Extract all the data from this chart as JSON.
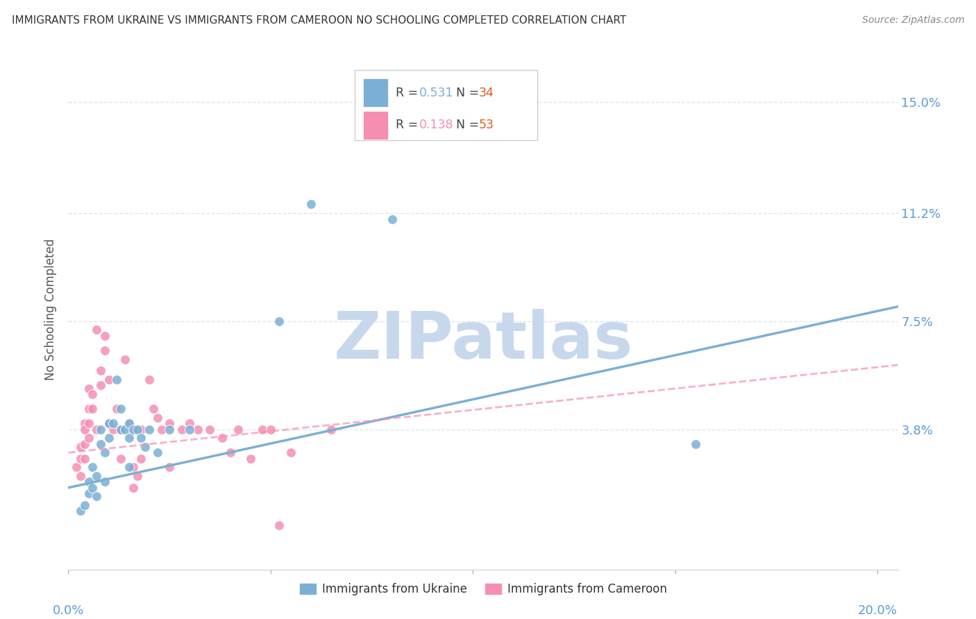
{
  "title": "IMMIGRANTS FROM UKRAINE VS IMMIGRANTS FROM CAMEROON NO SCHOOLING COMPLETED CORRELATION CHART",
  "source": "Source: ZipAtlas.com",
  "ylabel": "No Schooling Completed",
  "ytick_labels": [
    "15.0%",
    "11.2%",
    "7.5%",
    "3.8%"
  ],
  "ytick_values": [
    0.15,
    0.112,
    0.075,
    0.038
  ],
  "xlim": [
    0.0,
    0.205
  ],
  "ylim": [
    -0.01,
    0.168
  ],
  "ukraine_color": "#7bafd4",
  "cameroon_color": "#f48fb1",
  "ukraine_scatter": [
    [
      0.003,
      0.01
    ],
    [
      0.004,
      0.012
    ],
    [
      0.005,
      0.02
    ],
    [
      0.005,
      0.016
    ],
    [
      0.006,
      0.025
    ],
    [
      0.006,
      0.018
    ],
    [
      0.007,
      0.022
    ],
    [
      0.007,
      0.015
    ],
    [
      0.008,
      0.038
    ],
    [
      0.008,
      0.033
    ],
    [
      0.009,
      0.03
    ],
    [
      0.009,
      0.02
    ],
    [
      0.01,
      0.04
    ],
    [
      0.01,
      0.035
    ],
    [
      0.011,
      0.04
    ],
    [
      0.012,
      0.055
    ],
    [
      0.013,
      0.045
    ],
    [
      0.013,
      0.038
    ],
    [
      0.014,
      0.038
    ],
    [
      0.015,
      0.04
    ],
    [
      0.015,
      0.035
    ],
    [
      0.015,
      0.025
    ],
    [
      0.016,
      0.038
    ],
    [
      0.017,
      0.038
    ],
    [
      0.018,
      0.035
    ],
    [
      0.019,
      0.032
    ],
    [
      0.02,
      0.038
    ],
    [
      0.022,
      0.03
    ],
    [
      0.025,
      0.038
    ],
    [
      0.03,
      0.038
    ],
    [
      0.052,
      0.075
    ],
    [
      0.06,
      0.115
    ],
    [
      0.08,
      0.11
    ],
    [
      0.155,
      0.033
    ]
  ],
  "cameroon_scatter": [
    [
      0.002,
      0.025
    ],
    [
      0.003,
      0.032
    ],
    [
      0.003,
      0.028
    ],
    [
      0.003,
      0.022
    ],
    [
      0.004,
      0.04
    ],
    [
      0.004,
      0.038
    ],
    [
      0.004,
      0.033
    ],
    [
      0.004,
      0.028
    ],
    [
      0.005,
      0.052
    ],
    [
      0.005,
      0.045
    ],
    [
      0.005,
      0.04
    ],
    [
      0.005,
      0.035
    ],
    [
      0.006,
      0.05
    ],
    [
      0.006,
      0.045
    ],
    [
      0.007,
      0.072
    ],
    [
      0.007,
      0.038
    ],
    [
      0.008,
      0.058
    ],
    [
      0.008,
      0.053
    ],
    [
      0.009,
      0.07
    ],
    [
      0.009,
      0.065
    ],
    [
      0.01,
      0.055
    ],
    [
      0.01,
      0.04
    ],
    [
      0.011,
      0.038
    ],
    [
      0.012,
      0.045
    ],
    [
      0.013,
      0.038
    ],
    [
      0.013,
      0.028
    ],
    [
      0.014,
      0.062
    ],
    [
      0.015,
      0.04
    ],
    [
      0.016,
      0.038
    ],
    [
      0.016,
      0.025
    ],
    [
      0.016,
      0.018
    ],
    [
      0.017,
      0.022
    ],
    [
      0.018,
      0.038
    ],
    [
      0.018,
      0.028
    ],
    [
      0.02,
      0.055
    ],
    [
      0.021,
      0.045
    ],
    [
      0.022,
      0.042
    ],
    [
      0.023,
      0.038
    ],
    [
      0.025,
      0.04
    ],
    [
      0.025,
      0.025
    ],
    [
      0.028,
      0.038
    ],
    [
      0.03,
      0.04
    ],
    [
      0.032,
      0.038
    ],
    [
      0.035,
      0.038
    ],
    [
      0.038,
      0.035
    ],
    [
      0.04,
      0.03
    ],
    [
      0.042,
      0.038
    ],
    [
      0.045,
      0.028
    ],
    [
      0.048,
      0.038
    ],
    [
      0.05,
      0.038
    ],
    [
      0.052,
      0.005
    ],
    [
      0.055,
      0.03
    ],
    [
      0.065,
      0.038
    ]
  ],
  "ukraine_trend": {
    "x_start": 0.0,
    "y_start": 0.018,
    "x_end": 0.205,
    "y_end": 0.08
  },
  "cameroon_trend": {
    "x_start": 0.0,
    "y_start": 0.03,
    "x_end": 0.205,
    "y_end": 0.06
  },
  "watermark_text": "ZIPatlas",
  "watermark_color": "#c8d8ec",
  "background_color": "#ffffff",
  "grid_color": "#dde5f0",
  "title_color": "#333333",
  "tick_color": "#5b9bd5",
  "ylabel_color": "#555555",
  "r_ukraine": "0.531",
  "n_ukraine": "34",
  "r_cameroon": "0.138",
  "n_cameroon": "53",
  "legend1_label": "Immigrants from Ukraine",
  "legend2_label": "Immigrants from Cameroon",
  "n_color": "#e05b20",
  "source_color": "#888888"
}
